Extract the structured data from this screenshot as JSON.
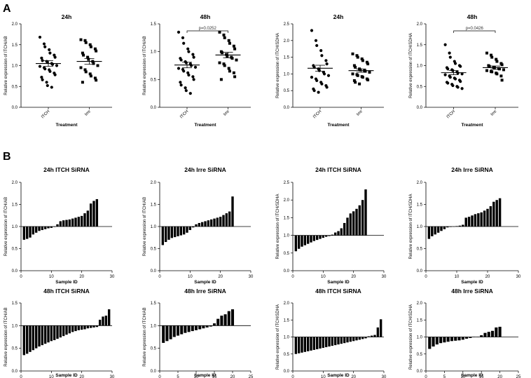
{
  "figure": {
    "label_a": "A",
    "label_b": "B"
  },
  "chart_data": [
    {
      "type": "scatter",
      "panel": "A",
      "title": "24h",
      "xlabel": "Treatment",
      "ylabel": "Relative expression of ITCH/AB",
      "ylim": [
        0,
        2.0
      ],
      "yticks": [
        0.0,
        0.5,
        1.0,
        1.5,
        2.0
      ],
      "categories": [
        "ITCH",
        "Irre"
      ],
      "annotation": "",
      "series": [
        {
          "name": "ITCH",
          "marker": "circle",
          "mean": 1.05,
          "sem": 0.07,
          "values": [
            1.68,
            1.52,
            1.45,
            1.38,
            1.3,
            1.25,
            1.2,
            1.18,
            1.12,
            1.1,
            1.08,
            1.05,
            1.03,
            1.0,
            0.98,
            0.95,
            0.92,
            0.9,
            0.86,
            0.82,
            0.78,
            0.72,
            0.66,
            0.6,
            0.52,
            0.48
          ]
        },
        {
          "name": "Irre",
          "marker": "square",
          "mean": 1.1,
          "sem": 0.07,
          "values": [
            1.62,
            1.6,
            1.55,
            1.5,
            1.45,
            1.4,
            1.35,
            1.3,
            1.25,
            1.2,
            1.15,
            1.1,
            1.05,
            1.0,
            0.95,
            0.9,
            0.85,
            0.8,
            0.75,
            0.7,
            0.65,
            0.6
          ]
        }
      ]
    },
    {
      "type": "scatter",
      "panel": "A",
      "title": "48h",
      "xlabel": "Treatment",
      "ylabel": "Relative expression of ITCH/AB",
      "ylim": [
        0,
        1.5
      ],
      "yticks": [
        0.0,
        0.5,
        1.0,
        1.5
      ],
      "categories": [
        "ITCH",
        "Irre"
      ],
      "annotation": "p=0.0252",
      "series": [
        {
          "name": "ITCH",
          "marker": "circle",
          "mean": 0.76,
          "sem": 0.05,
          "values": [
            1.35,
            1.25,
            1.15,
            1.05,
            1.0,
            0.95,
            0.9,
            0.88,
            0.85,
            0.82,
            0.8,
            0.78,
            0.75,
            0.72,
            0.7,
            0.68,
            0.65,
            0.62,
            0.58,
            0.55,
            0.5,
            0.45,
            0.4,
            0.35,
            0.3,
            0.25
          ]
        },
        {
          "name": "Irre",
          "marker": "square",
          "mean": 0.94,
          "sem": 0.05,
          "values": [
            1.35,
            1.3,
            1.25,
            1.2,
            1.15,
            1.1,
            1.05,
            1.0,
            0.98,
            0.95,
            0.92,
            0.9,
            0.88,
            0.85,
            0.8,
            0.78,
            0.75,
            0.7,
            0.65,
            0.62,
            0.55,
            0.5
          ]
        }
      ]
    },
    {
      "type": "scatter",
      "panel": "A",
      "title": "24h",
      "xlabel": "Treatment",
      "ylabel": "Relative expression of ITCH/SDHA",
      "ylim": [
        0,
        2.5
      ],
      "yticks": [
        0.0,
        0.5,
        1.0,
        1.5,
        2.0,
        2.5
      ],
      "categories": [
        "ITCH",
        "Irre"
      ],
      "annotation": "",
      "series": [
        {
          "name": "ITCH",
          "marker": "circle",
          "mean": 1.17,
          "sem": 0.09,
          "values": [
            2.3,
            2.0,
            1.85,
            1.7,
            1.55,
            1.4,
            1.3,
            1.25,
            1.2,
            1.15,
            1.1,
            1.05,
            1.0,
            0.95,
            0.9,
            0.85,
            0.8,
            0.75,
            0.7,
            0.65,
            0.6,
            0.55,
            0.5,
            0.45
          ]
        },
        {
          "name": "Irre",
          "marker": "square",
          "mean": 1.1,
          "sem": 0.05,
          "values": [
            1.6,
            1.55,
            1.5,
            1.45,
            1.4,
            1.35,
            1.3,
            1.25,
            1.2,
            1.15,
            1.12,
            1.1,
            1.08,
            1.05,
            1.0,
            0.98,
            0.95,
            0.92,
            0.9,
            0.85,
            0.82,
            0.8,
            0.75,
            0.7
          ]
        }
      ]
    },
    {
      "type": "scatter",
      "panel": "A",
      "title": "48h",
      "xlabel": "Treatment",
      "ylabel": "Relative expression of ITCH/SDHA",
      "ylim": [
        0,
        2.0
      ],
      "yticks": [
        0.0,
        0.5,
        1.0,
        1.5,
        2.0
      ],
      "categories": [
        "ITCH",
        "Irre"
      ],
      "annotation": "p=0.0426",
      "series": [
        {
          "name": "ITCH",
          "marker": "circle",
          "mean": 0.83,
          "sem": 0.05,
          "values": [
            1.5,
            1.3,
            1.2,
            1.1,
            1.05,
            1.0,
            0.98,
            0.95,
            0.92,
            0.9,
            0.88,
            0.85,
            0.82,
            0.8,
            0.78,
            0.75,
            0.72,
            0.7,
            0.68,
            0.65,
            0.62,
            0.6,
            0.58,
            0.55,
            0.52,
            0.5,
            0.48,
            0.45
          ]
        },
        {
          "name": "Irre",
          "marker": "square",
          "mean": 0.95,
          "sem": 0.04,
          "values": [
            1.3,
            1.25,
            1.2,
            1.15,
            1.1,
            1.05,
            1.02,
            1.0,
            0.98,
            0.96,
            0.95,
            0.93,
            0.92,
            0.9,
            0.88,
            0.86,
            0.85,
            0.82,
            0.8,
            0.75,
            0.65
          ]
        }
      ]
    },
    {
      "type": "bar",
      "panel": "B",
      "title": "24h ITCH SiRNA",
      "xlabel": "Sample ID",
      "ylabel": "Relative expression of ITCH/AB",
      "baseline": 1.0,
      "ylim": [
        0,
        2.0
      ],
      "yticks": [
        0.0,
        0.5,
        1.0,
        1.5,
        2.0
      ],
      "xlim": [
        0,
        30
      ],
      "xticks": [
        0,
        10,
        20,
        30
      ],
      "values": [
        0.7,
        0.72,
        0.75,
        0.82,
        0.86,
        0.9,
        0.92,
        0.94,
        0.96,
        0.97,
        0.99,
        1.05,
        1.12,
        1.14,
        1.15,
        1.16,
        1.18,
        1.2,
        1.22,
        1.24,
        1.3,
        1.36,
        1.52,
        1.58,
        1.62
      ]
    },
    {
      "type": "bar",
      "panel": "B",
      "title": "24h Irre SiRNA",
      "xlabel": "Sample ID",
      "ylabel": "Relative expression of ITCH/AB",
      "baseline": 1.0,
      "ylim": [
        0,
        2.0
      ],
      "yticks": [
        0.0,
        0.5,
        1.0,
        1.5,
        2.0
      ],
      "xlim": [
        0,
        30
      ],
      "xticks": [
        0,
        10,
        20,
        30
      ],
      "values": [
        0.58,
        0.65,
        0.7,
        0.74,
        0.76,
        0.78,
        0.8,
        0.82,
        0.86,
        0.92,
        0.98,
        1.05,
        1.08,
        1.1,
        1.12,
        1.14,
        1.16,
        1.18,
        1.2,
        1.22,
        1.26,
        1.3,
        1.34,
        1.68
      ]
    },
    {
      "type": "bar",
      "panel": "B",
      "title": "24h ITCH SiRNA",
      "xlabel": "Sample ID",
      "ylabel": "Relative expression of ITCH/SDHA",
      "baseline": 1.0,
      "ylim": [
        0,
        2.5
      ],
      "yticks": [
        0.0,
        0.5,
        1.0,
        1.5,
        2.0,
        2.5
      ],
      "xlim": [
        0,
        30
      ],
      "xticks": [
        0,
        10,
        20,
        30
      ],
      "values": [
        0.55,
        0.62,
        0.68,
        0.72,
        0.76,
        0.8,
        0.84,
        0.87,
        0.9,
        0.93,
        0.96,
        0.98,
        1.02,
        1.08,
        1.12,
        1.2,
        1.35,
        1.5,
        1.62,
        1.68,
        1.75,
        1.85,
        2.0,
        2.3
      ]
    },
    {
      "type": "bar",
      "panel": "B",
      "title": "24h Irre SiRNA",
      "xlabel": "Sample ID",
      "ylabel": "Relative expression of ITCH/SDHA",
      "baseline": 1.0,
      "ylim": [
        0,
        2.0
      ],
      "yticks": [
        0.0,
        0.5,
        1.0,
        1.5,
        2.0
      ],
      "xlim": [
        0,
        30
      ],
      "xticks": [
        0,
        10,
        20,
        30
      ],
      "values": [
        0.72,
        0.78,
        0.82,
        0.86,
        0.9,
        0.94,
        0.98,
        0.99,
        1.0,
        1.01,
        1.02,
        1.04,
        1.2,
        1.22,
        1.25,
        1.28,
        1.3,
        1.32,
        1.36,
        1.4,
        1.46,
        1.56,
        1.6,
        1.64
      ]
    },
    {
      "type": "bar",
      "panel": "B",
      "title": "48h ITCH SiRNA",
      "xlabel": "Sample ID",
      "ylabel": "Relative expression of ITCH/AB",
      "baseline": 1.0,
      "ylim": [
        0,
        1.5
      ],
      "yticks": [
        0.0,
        0.5,
        1.0,
        1.5
      ],
      "xlim": [
        0,
        30
      ],
      "xticks": [
        0,
        10,
        20,
        30
      ],
      "values": [
        0.35,
        0.38,
        0.42,
        0.46,
        0.5,
        0.54,
        0.57,
        0.6,
        0.63,
        0.66,
        0.68,
        0.71,
        0.74,
        0.77,
        0.8,
        0.83,
        0.86,
        0.88,
        0.9,
        0.91,
        0.92,
        0.94,
        0.95,
        0.96,
        0.97,
        1.13,
        1.2,
        1.22,
        1.36
      ]
    },
    {
      "type": "bar",
      "panel": "B",
      "title": "48h Irre SiRNA",
      "xlabel": "Sample ID",
      "ylabel": "Relative expression of ITCH/AB",
      "baseline": 1.0,
      "ylim": [
        0,
        1.5
      ],
      "yticks": [
        0.0,
        0.5,
        1.0,
        1.5
      ],
      "xlim": [
        0,
        25
      ],
      "xticks": [
        0,
        5,
        10,
        15,
        20,
        25
      ],
      "values": [
        0.62,
        0.66,
        0.7,
        0.75,
        0.78,
        0.81,
        0.84,
        0.86,
        0.88,
        0.9,
        0.92,
        0.94,
        0.96,
        0.98,
        1.05,
        1.15,
        1.22,
        1.25,
        1.32,
        1.36
      ]
    },
    {
      "type": "bar",
      "panel": "B",
      "title": "48h ITCH SiRNA",
      "xlabel": "Sample ID",
      "ylabel": "Relative expression of ITCH/SDHA",
      "baseline": 1.0,
      "ylim": [
        0,
        2.0
      ],
      "yticks": [
        0.0,
        0.5,
        1.0,
        1.5,
        2.0
      ],
      "xlim": [
        0,
        30
      ],
      "xticks": [
        0,
        10,
        20,
        30
      ],
      "values": [
        0.5,
        0.52,
        0.54,
        0.56,
        0.58,
        0.6,
        0.62,
        0.64,
        0.66,
        0.68,
        0.7,
        0.72,
        0.74,
        0.76,
        0.78,
        0.8,
        0.82,
        0.84,
        0.86,
        0.88,
        0.9,
        0.92,
        0.94,
        0.96,
        1.02,
        1.04,
        1.06,
        1.28,
        1.52
      ]
    },
    {
      "type": "bar",
      "panel": "B",
      "title": "48h Irre SiRNA",
      "xlabel": "Sample ID",
      "ylabel": "Relative expression of ITCH/SDHA",
      "baseline": 1.0,
      "ylim": [
        0,
        2.0
      ],
      "yticks": [
        0.0,
        0.5,
        1.0,
        1.5,
        2.0
      ],
      "xlim": [
        0,
        25
      ],
      "xticks": [
        0,
        5,
        10,
        15,
        20,
        25
      ],
      "values": [
        0.65,
        0.72,
        0.78,
        0.82,
        0.84,
        0.86,
        0.88,
        0.89,
        0.9,
        0.92,
        0.95,
        0.97,
        0.99,
        1.0,
        1.05,
        1.12,
        1.15,
        1.18,
        1.28,
        1.3
      ]
    }
  ]
}
